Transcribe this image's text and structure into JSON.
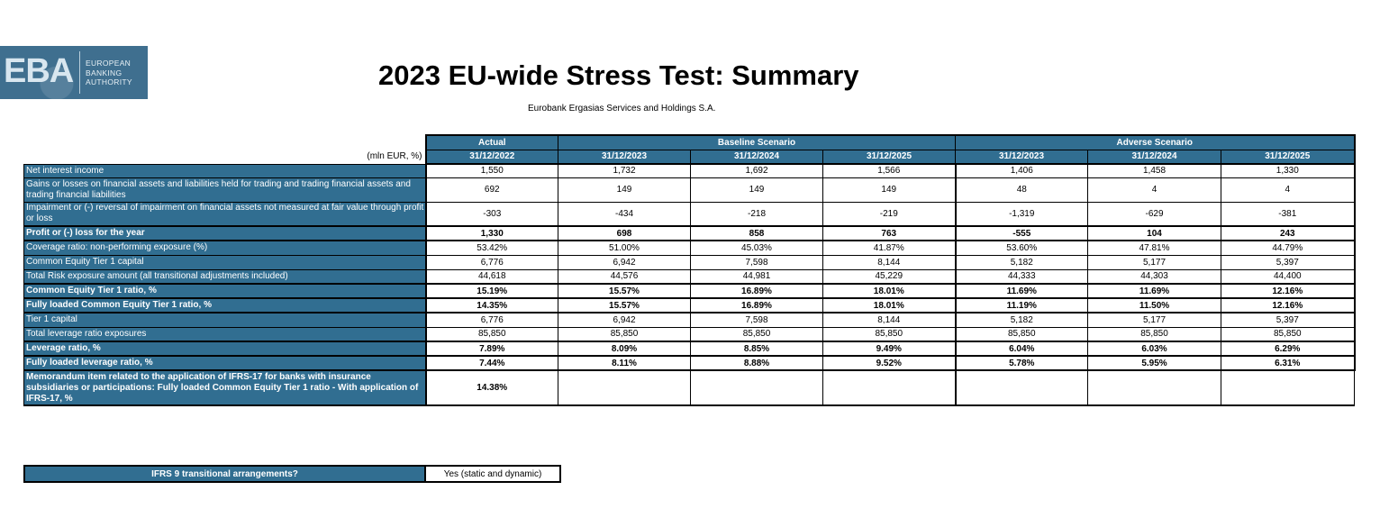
{
  "logo": {
    "abbr": "EBA",
    "lines": [
      "EUROPEAN",
      "BANKING",
      "AUTHORITY"
    ]
  },
  "title": "2023 EU-wide Stress Test: Summary",
  "bank_name": "Eurobank Ergasias Services and Holdings S.A.",
  "unit_label": "(mln EUR, %)",
  "groups": {
    "actual": "Actual",
    "baseline": "Baseline Scenario",
    "adverse": "Adverse Scenario"
  },
  "dates": [
    "31/12/2022",
    "31/12/2023",
    "31/12/2024",
    "31/12/2025",
    "31/12/2023",
    "31/12/2024",
    "31/12/2025"
  ],
  "rows": [
    {
      "label": "Net interest income",
      "bold": false,
      "values": [
        "1,550",
        "1,732",
        "1,692",
        "1,566",
        "1,406",
        "1,458",
        "1,330"
      ]
    },
    {
      "label": "Gains or losses on financial assets and liabilities held for trading and trading financial assets and trading financial liabilities",
      "bold": false,
      "values": [
        "692",
        "149",
        "149",
        "149",
        "48",
        "4",
        "4"
      ]
    },
    {
      "label": "Impairment or (-) reversal of impairment on financial assets not measured at fair value through profit or loss",
      "bold": false,
      "values": [
        "-303",
        "-434",
        "-218",
        "-219",
        "-1,319",
        "-629",
        "-381"
      ]
    },
    {
      "label": "Profit or (-) loss for the year",
      "bold": true,
      "values": [
        "1,330",
        "698",
        "858",
        "763",
        "-555",
        "104",
        "243"
      ]
    },
    {
      "label": "Coverage ratio: non-performing exposure (%)",
      "bold": false,
      "values": [
        "53.42%",
        "51.00%",
        "45.03%",
        "41.87%",
        "53.60%",
        "47.81%",
        "44.79%"
      ]
    },
    {
      "label": "Common Equity Tier 1 capital",
      "bold": false,
      "values": [
        "6,776",
        "6,942",
        "7,598",
        "8,144",
        "5,182",
        "5,177",
        "5,397"
      ]
    },
    {
      "label": "Total Risk exposure amount (all transitional adjustments included)",
      "bold": false,
      "values": [
        "44,618",
        "44,576",
        "44,981",
        "45,229",
        "44,333",
        "44,303",
        "44,400"
      ]
    },
    {
      "label": "Common Equity Tier 1 ratio, %",
      "bold": true,
      "values": [
        "15.19%",
        "15.57%",
        "16.89%",
        "18.01%",
        "11.69%",
        "11.69%",
        "12.16%"
      ]
    },
    {
      "label": "Fully loaded Common Equity Tier 1 ratio, %",
      "bold": true,
      "values": [
        "14.35%",
        "15.57%",
        "16.89%",
        "18.01%",
        "11.19%",
        "11.50%",
        "12.16%"
      ]
    },
    {
      "label": "Tier 1 capital",
      "bold": false,
      "values": [
        "6,776",
        "6,942",
        "7,598",
        "8,144",
        "5,182",
        "5,177",
        "5,397"
      ]
    },
    {
      "label": "Total leverage ratio exposures",
      "bold": false,
      "values": [
        "85,850",
        "85,850",
        "85,850",
        "85,850",
        "85,850",
        "85,850",
        "85,850"
      ]
    },
    {
      "label": "Leverage ratio, %",
      "bold": true,
      "values": [
        "7.89%",
        "8.09%",
        "8.85%",
        "9.49%",
        "6.04%",
        "6.03%",
        "6.29%"
      ]
    },
    {
      "label": "Fully loaded leverage ratio, %",
      "bold": true,
      "values": [
        "7.44%",
        "8.11%",
        "8.88%",
        "9.52%",
        "5.78%",
        "5.95%",
        "6.31%"
      ]
    },
    {
      "label": "Memorandum item related to the application of IFRS-17 for banks with insurance subsidiaries or participations: Fully loaded Common Equity Tier 1 ratio - With application of IFRS-17, %",
      "bold": true,
      "values": [
        "14.38%",
        "",
        "",
        "",
        "",
        "",
        ""
      ]
    }
  ],
  "ifrs9": {
    "question": "IFRS 9 transitional arrangements?",
    "answer": "Yes (static and dynamic)"
  }
}
